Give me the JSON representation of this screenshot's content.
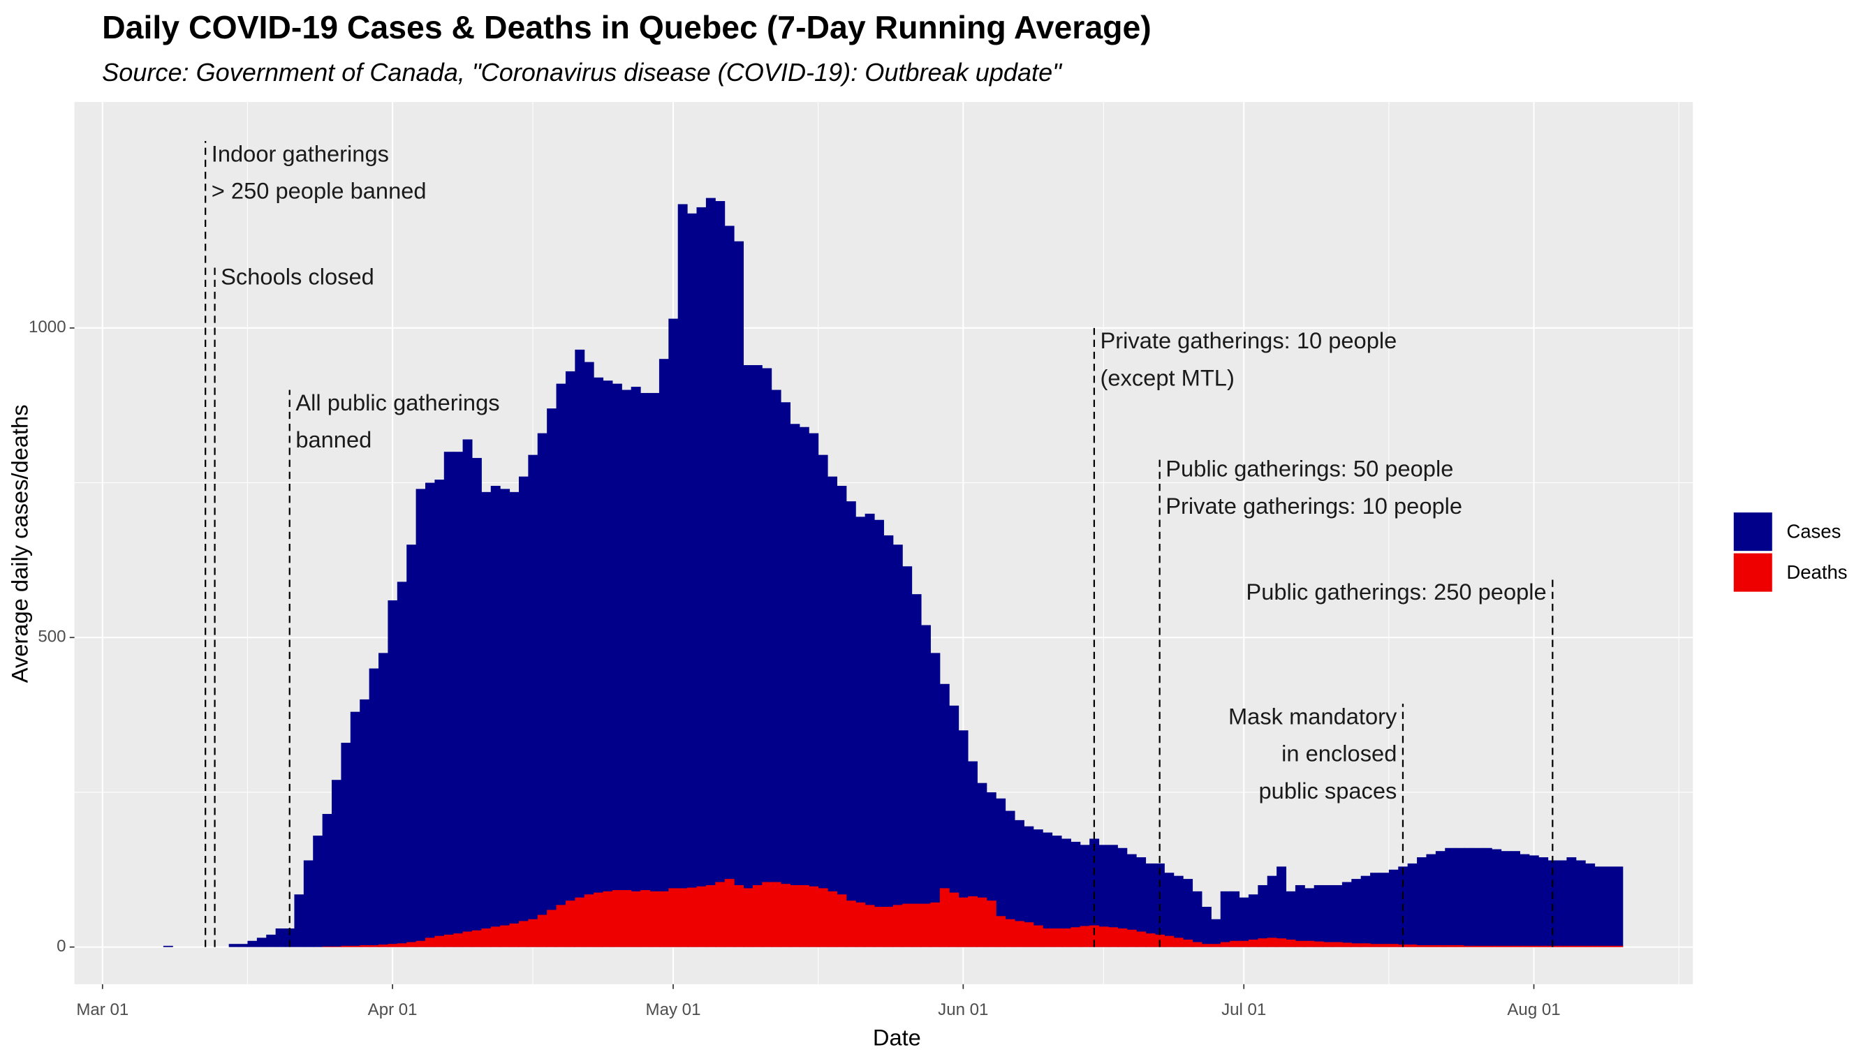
{
  "chart_data": {
    "type": "bar",
    "title": "Daily COVID-19 Cases & Deaths in Quebec (7-Day Running Average)",
    "subtitle": "Source: Government of Canada, \"Coronavirus disease (COVID-19): Outbreak update\"",
    "x_label": "Date",
    "y_label": "Average daily cases/deaths",
    "xlim": [
      "Feb 26",
      "Aug 18"
    ],
    "xticks": [
      "Mar 01",
      "Apr 01",
      "May 01",
      "Jun 01",
      "Jul 01",
      "Aug 01"
    ],
    "ylim": [
      -60,
      1365
    ],
    "yticks": [
      0,
      500,
      1000
    ],
    "grid": true,
    "legend": "right",
    "x": [
      "Mar 08",
      "Mar 09",
      "Mar 10",
      "Mar 11",
      "Mar 12",
      "Mar 13",
      "Mar 14",
      "Mar 15",
      "Mar 16",
      "Mar 17",
      "Mar 18",
      "Mar 19",
      "Mar 20",
      "Mar 21",
      "Mar 22",
      "Mar 23",
      "Mar 24",
      "Mar 25",
      "Mar 26",
      "Mar 27",
      "Mar 28",
      "Mar 29",
      "Mar 30",
      "Mar 31",
      "Apr 01",
      "Apr 02",
      "Apr 03",
      "Apr 04",
      "Apr 05",
      "Apr 06",
      "Apr 07",
      "Apr 08",
      "Apr 09",
      "Apr 10",
      "Apr 11",
      "Apr 12",
      "Apr 13",
      "Apr 14",
      "Apr 15",
      "Apr 16",
      "Apr 17",
      "Apr 18",
      "Apr 19",
      "Apr 20",
      "Apr 21",
      "Apr 22",
      "Apr 23",
      "Apr 24",
      "Apr 25",
      "Apr 26",
      "Apr 27",
      "Apr 28",
      "Apr 29",
      "Apr 30",
      "May 01",
      "May 02",
      "May 03",
      "May 04",
      "May 05",
      "May 06",
      "May 07",
      "May 08",
      "May 09",
      "May 10",
      "May 11",
      "May 12",
      "May 13",
      "May 14",
      "May 15",
      "May 16",
      "May 17",
      "May 18",
      "May 19",
      "May 20",
      "May 21",
      "May 22",
      "May 23",
      "May 24",
      "May 25",
      "May 26",
      "May 27",
      "May 28",
      "May 29",
      "May 30",
      "May 31",
      "Jun 01",
      "Jun 02",
      "Jun 03",
      "Jun 04",
      "Jun 05",
      "Jun 06",
      "Jun 07",
      "Jun 08",
      "Jun 09",
      "Jun 10",
      "Jun 11",
      "Jun 12",
      "Jun 13",
      "Jun 14",
      "Jun 15",
      "Jun 16",
      "Jun 17",
      "Jun 18",
      "Jun 19",
      "Jun 20",
      "Jun 21",
      "Jun 22",
      "Jun 23",
      "Jun 24",
      "Jun 25",
      "Jun 26",
      "Jun 27",
      "Jun 28",
      "Jun 29",
      "Jun 30",
      "Jul 01",
      "Jul 02",
      "Jul 03",
      "Jul 04",
      "Jul 05",
      "Jul 06",
      "Jul 07",
      "Jul 08",
      "Jul 09",
      "Jul 10",
      "Jul 11",
      "Jul 12",
      "Jul 13",
      "Jul 14",
      "Jul 15",
      "Jul 16",
      "Jul 17",
      "Jul 18",
      "Jul 19",
      "Jul 20",
      "Jul 21",
      "Jul 22",
      "Jul 23",
      "Jul 24",
      "Jul 25",
      "Jul 26",
      "Jul 27",
      "Jul 28",
      "Jul 29",
      "Jul 30",
      "Jul 31",
      "Aug 01",
      "Aug 02",
      "Aug 03",
      "Aug 04",
      "Aug 05",
      "Aug 06",
      "Aug 07",
      "Aug 08",
      "Aug 09",
      "Aug 10"
    ],
    "series": [
      {
        "name": "Cases",
        "color": "#00008b",
        "values": [
          2,
          0,
          0,
          0,
          0,
          0,
          0,
          5,
          5,
          10,
          15,
          20,
          30,
          30,
          85,
          140,
          180,
          215,
          270,
          330,
          380,
          400,
          450,
          475,
          560,
          590,
          650,
          740,
          750,
          755,
          800,
          800,
          820,
          790,
          735,
          745,
          740,
          735,
          760,
          795,
          830,
          870,
          910,
          930,
          965,
          945,
          920,
          915,
          910,
          900,
          905,
          895,
          895,
          950,
          1015,
          1200,
          1185,
          1195,
          1210,
          1205,
          1165,
          1140,
          940,
          940,
          935,
          900,
          880,
          845,
          840,
          830,
          795,
          760,
          745,
          720,
          695,
          700,
          690,
          665,
          650,
          615,
          570,
          520,
          475,
          425,
          390,
          350,
          300,
          265,
          250,
          240,
          220,
          205,
          195,
          190,
          185,
          180,
          175,
          170,
          165,
          175,
          165,
          165,
          160,
          150,
          145,
          135,
          135,
          120,
          115,
          110,
          90,
          65,
          45,
          90,
          90,
          80,
          85,
          100,
          115,
          130,
          90,
          100,
          95,
          100,
          100,
          100,
          105,
          110,
          115,
          120,
          120,
          125,
          130,
          135,
          145,
          150,
          155,
          160,
          160,
          160,
          160,
          160,
          158,
          155,
          155,
          150,
          148,
          145,
          140,
          140,
          145,
          140,
          135,
          130,
          130,
          130
        ]
      },
      {
        "name": "Deaths",
        "color": "#ee0000",
        "values": [
          0,
          0,
          0,
          0,
          0,
          0,
          0,
          0,
          0,
          0,
          0,
          0,
          0,
          0,
          0,
          0,
          0,
          1,
          1,
          2,
          2,
          3,
          3,
          4,
          5,
          6,
          8,
          10,
          15,
          18,
          20,
          22,
          25,
          27,
          30,
          33,
          35,
          38,
          42,
          45,
          52,
          60,
          68,
          75,
          80,
          85,
          88,
          90,
          92,
          92,
          90,
          92,
          90,
          90,
          95,
          95,
          96,
          98,
          100,
          105,
          110,
          100,
          95,
          100,
          105,
          105,
          102,
          100,
          100,
          98,
          95,
          90,
          85,
          75,
          72,
          68,
          65,
          65,
          68,
          70,
          70,
          70,
          72,
          95,
          88,
          80,
          82,
          80,
          75,
          50,
          45,
          42,
          40,
          35,
          30,
          30,
          30,
          32,
          34,
          35,
          33,
          32,
          30,
          28,
          25,
          22,
          20,
          18,
          15,
          12,
          8,
          5,
          5,
          8,
          10,
          10,
          12,
          14,
          15,
          14,
          12,
          10,
          10,
          9,
          8,
          8,
          7,
          6,
          6,
          5,
          5,
          5,
          4,
          4,
          3,
          3,
          3,
          3,
          3,
          2,
          2,
          2,
          2,
          2,
          2,
          2,
          2,
          2,
          2,
          2,
          2,
          2,
          2,
          2,
          2,
          2
        ]
      }
    ],
    "annotations": [
      {
        "x": "Mar 12",
        "y": 1302,
        "side": "right",
        "lines": [
          "Indoor gatherings",
          "> 250 people banned"
        ]
      },
      {
        "x": "Mar 13",
        "y": 1103,
        "side": "right",
        "lines": [
          "Schools closed"
        ]
      },
      {
        "x": "Mar 21",
        "y": 900,
        "side": "right",
        "lines": [
          "All public gatherings",
          "banned"
        ]
      },
      {
        "x": "Jun 15",
        "y": 1000,
        "side": "right",
        "lines": [
          "Private gatherings: 10 people",
          "(except MTL)"
        ]
      },
      {
        "x": "Jun 22",
        "y": 793,
        "side": "right",
        "lines": [
          "Public gatherings: 50 people",
          "Private gatherings: 10 people"
        ]
      },
      {
        "x": "Jul 18",
        "y": 393,
        "side": "left",
        "lines": [
          "Mask mandatory",
          "in enclosed",
          "public spaces"
        ]
      },
      {
        "x": "Aug 03",
        "y": 594,
        "side": "left",
        "lines": [
          "Public gatherings: 250 people"
        ]
      }
    ]
  }
}
